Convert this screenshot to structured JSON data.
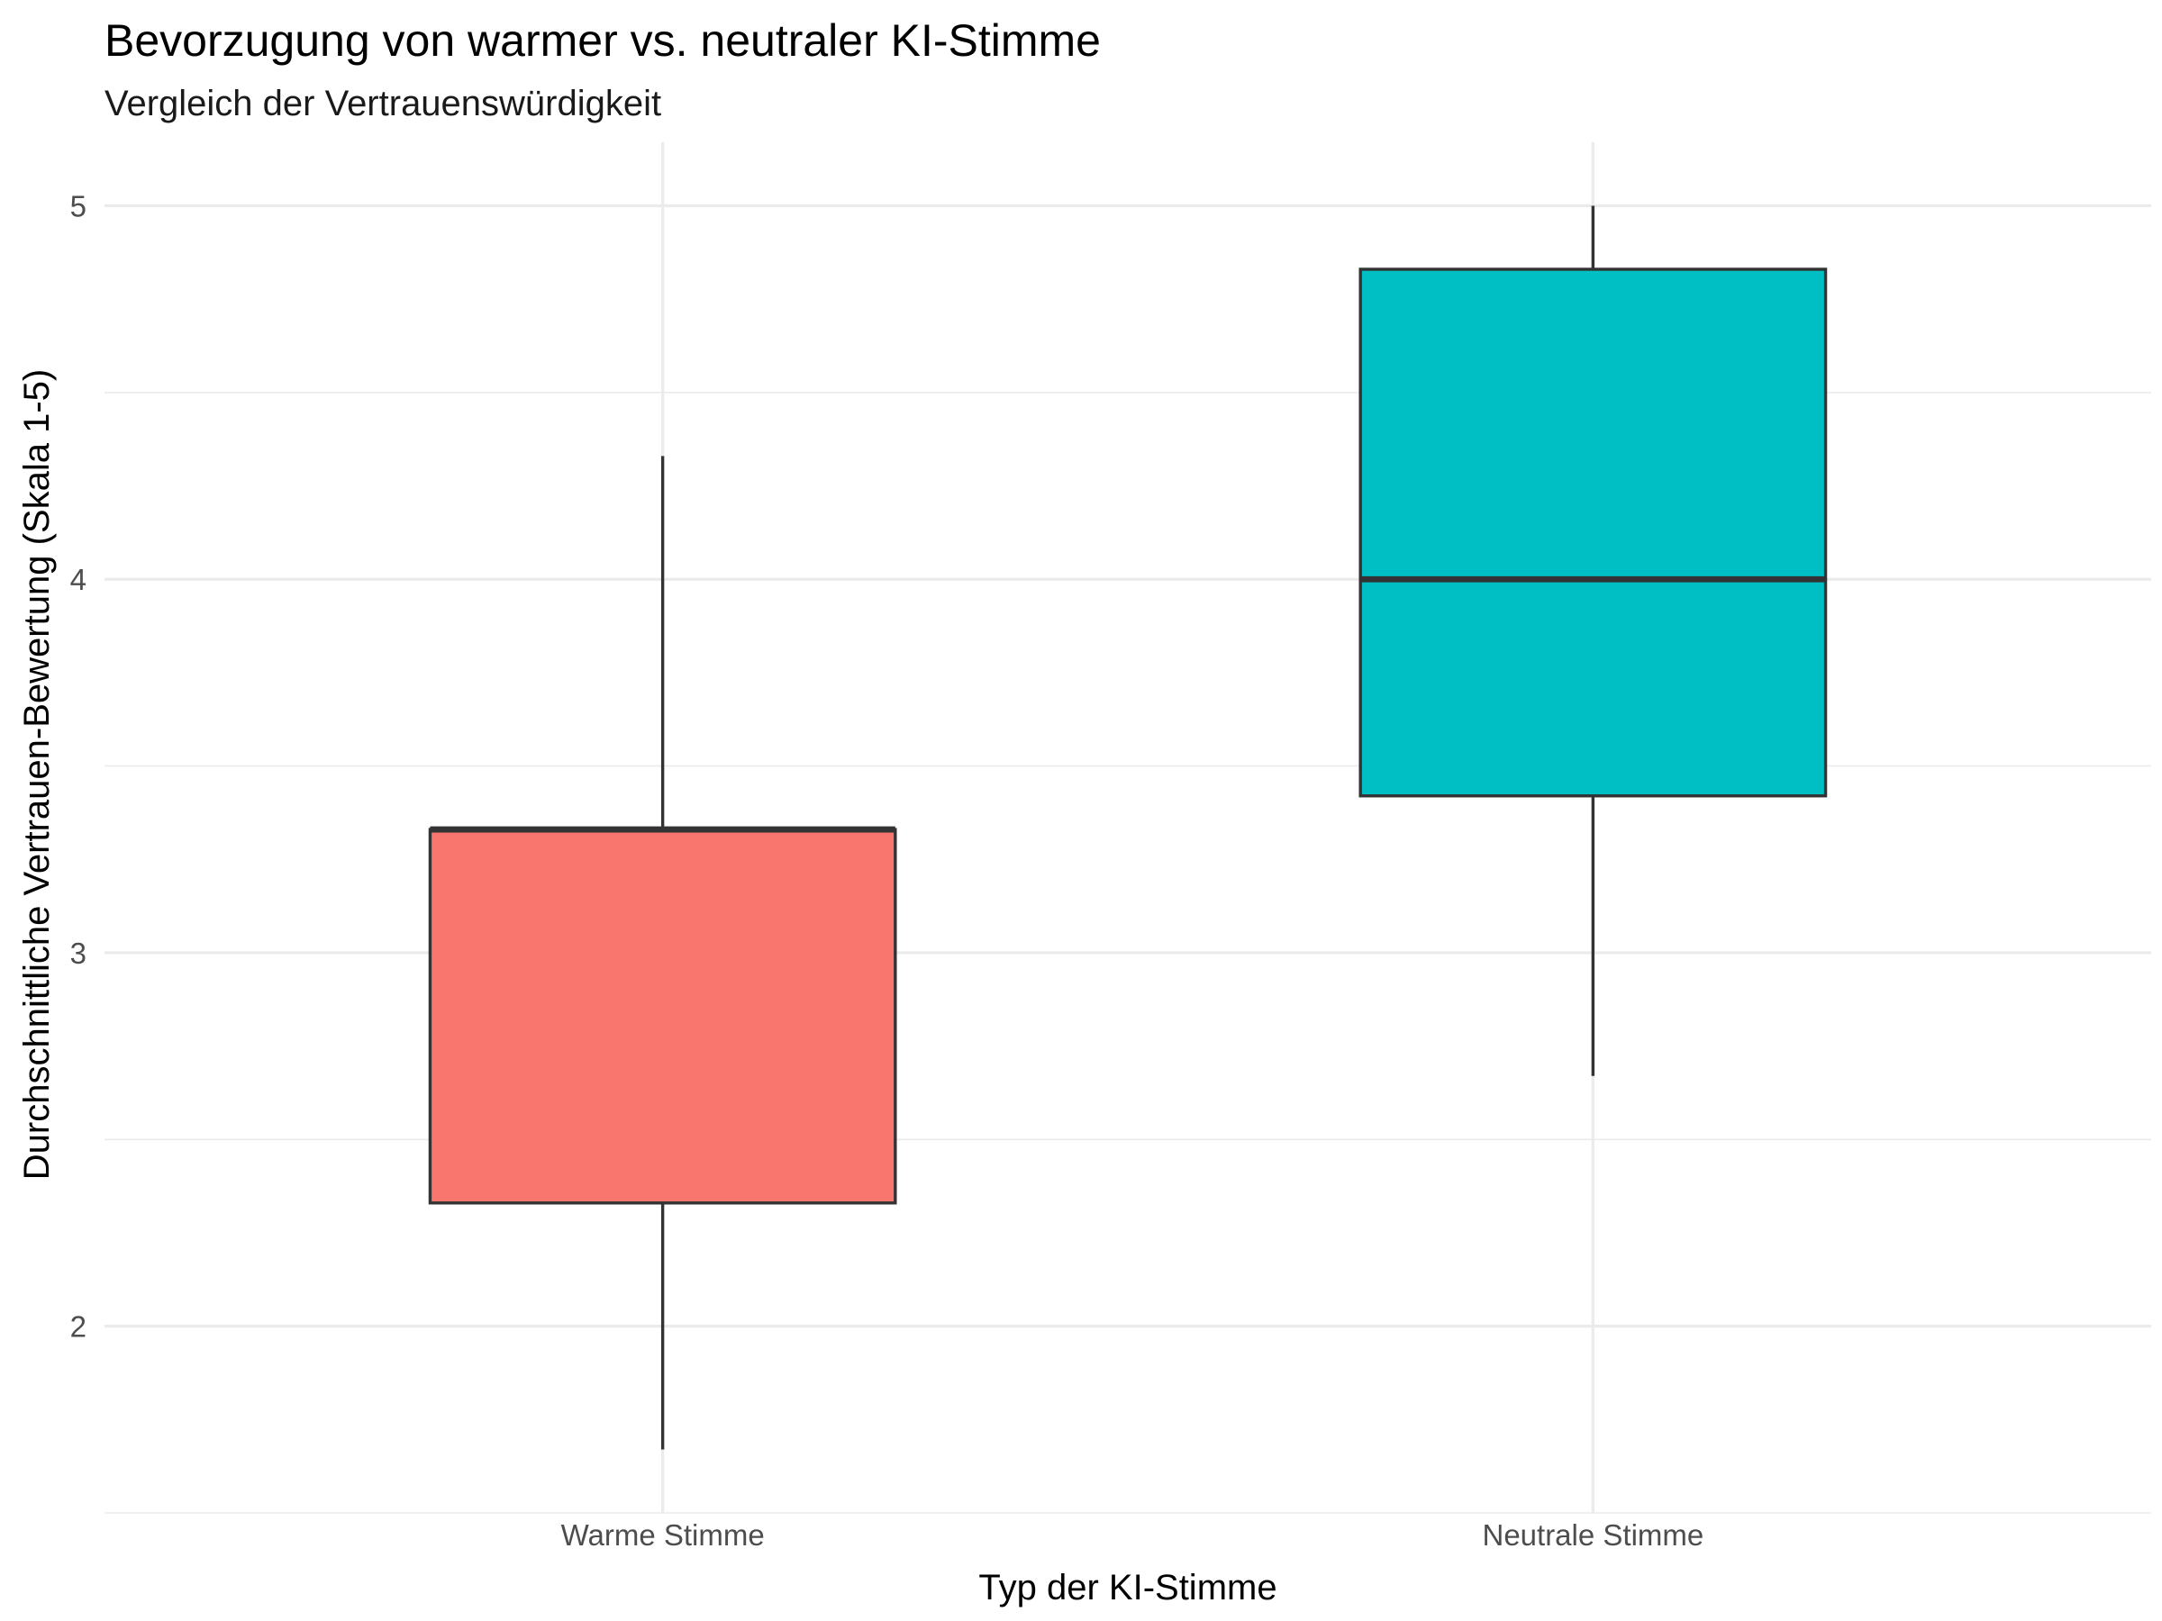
{
  "chart_data": {
    "type": "boxplot",
    "title": "Bevorzugung von warmer vs. neutraler KI-Stimme",
    "subtitle": "Vergleich der Vertrauenswürdigkeit",
    "xlabel": "Typ der KI-Stimme",
    "ylabel": "Durchschnittliche Vertrauen-Bewertung (Skala 1-5)",
    "ylim": [
      1.5,
      5.17
    ],
    "y_ticks": [
      2,
      3,
      4,
      5
    ],
    "y_minor_ticks": [
      1.5,
      2.5,
      3.5,
      4.5
    ],
    "grid": true,
    "legend": "none",
    "categories": [
      "Warme Stimme",
      "Neutrale Stimme"
    ],
    "boxes": [
      {
        "category": "Warme Stimme",
        "whisker_low": 1.67,
        "q1": 2.33,
        "median": 3.33,
        "q3": 3.33,
        "whisker_high": 4.33,
        "color": "#F8766D"
      },
      {
        "category": "Neutrale Stimme",
        "whisker_low": 2.67,
        "q1": 3.42,
        "median": 4.0,
        "q3": 4.83,
        "whisker_high": 5.0,
        "color": "#00BFC4"
      }
    ]
  }
}
